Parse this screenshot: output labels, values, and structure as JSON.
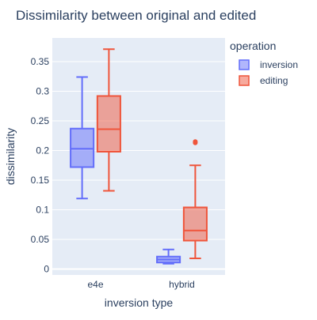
{
  "chart_data": {
    "type": "box",
    "title": "Dissimilarity between original and edited",
    "xlabel": "inversion type",
    "ylabel": "dissimilarity",
    "categories": [
      "e4e",
      "hybrid"
    ],
    "ylim": [
      -0.01,
      0.39
    ],
    "yticks": [
      0,
      0.05,
      0.1,
      0.15,
      0.2,
      0.25,
      0.3,
      0.35
    ],
    "ytick_labels": [
      "0",
      "0.05",
      "0.1",
      "0.15",
      "0.2",
      "0.25",
      "0.3",
      "0.35"
    ],
    "grid": true,
    "legend": {
      "title": "operation",
      "placement": "top-right outside"
    },
    "series": [
      {
        "name": "inversion",
        "color": "#636efa",
        "boxes": [
          {
            "category": "e4e",
            "min": 0.119,
            "q1": 0.172,
            "median": 0.203,
            "q3": 0.237,
            "max": 0.324,
            "outliers": []
          },
          {
            "category": "hybrid",
            "min": 0.009,
            "q1": 0.011,
            "median": 0.016,
            "q3": 0.021,
            "max": 0.033,
            "outliers": []
          }
        ]
      },
      {
        "name": "editing",
        "color": "#ef553b",
        "boxes": [
          {
            "category": "e4e",
            "min": 0.132,
            "q1": 0.198,
            "median": 0.236,
            "q3": 0.292,
            "max": 0.371,
            "outliers": []
          },
          {
            "category": "hybrid",
            "min": 0.018,
            "q1": 0.048,
            "median": 0.065,
            "q3": 0.104,
            "max": 0.175,
            "outliers": [
              0.213,
              0.215
            ]
          }
        ]
      }
    ]
  }
}
